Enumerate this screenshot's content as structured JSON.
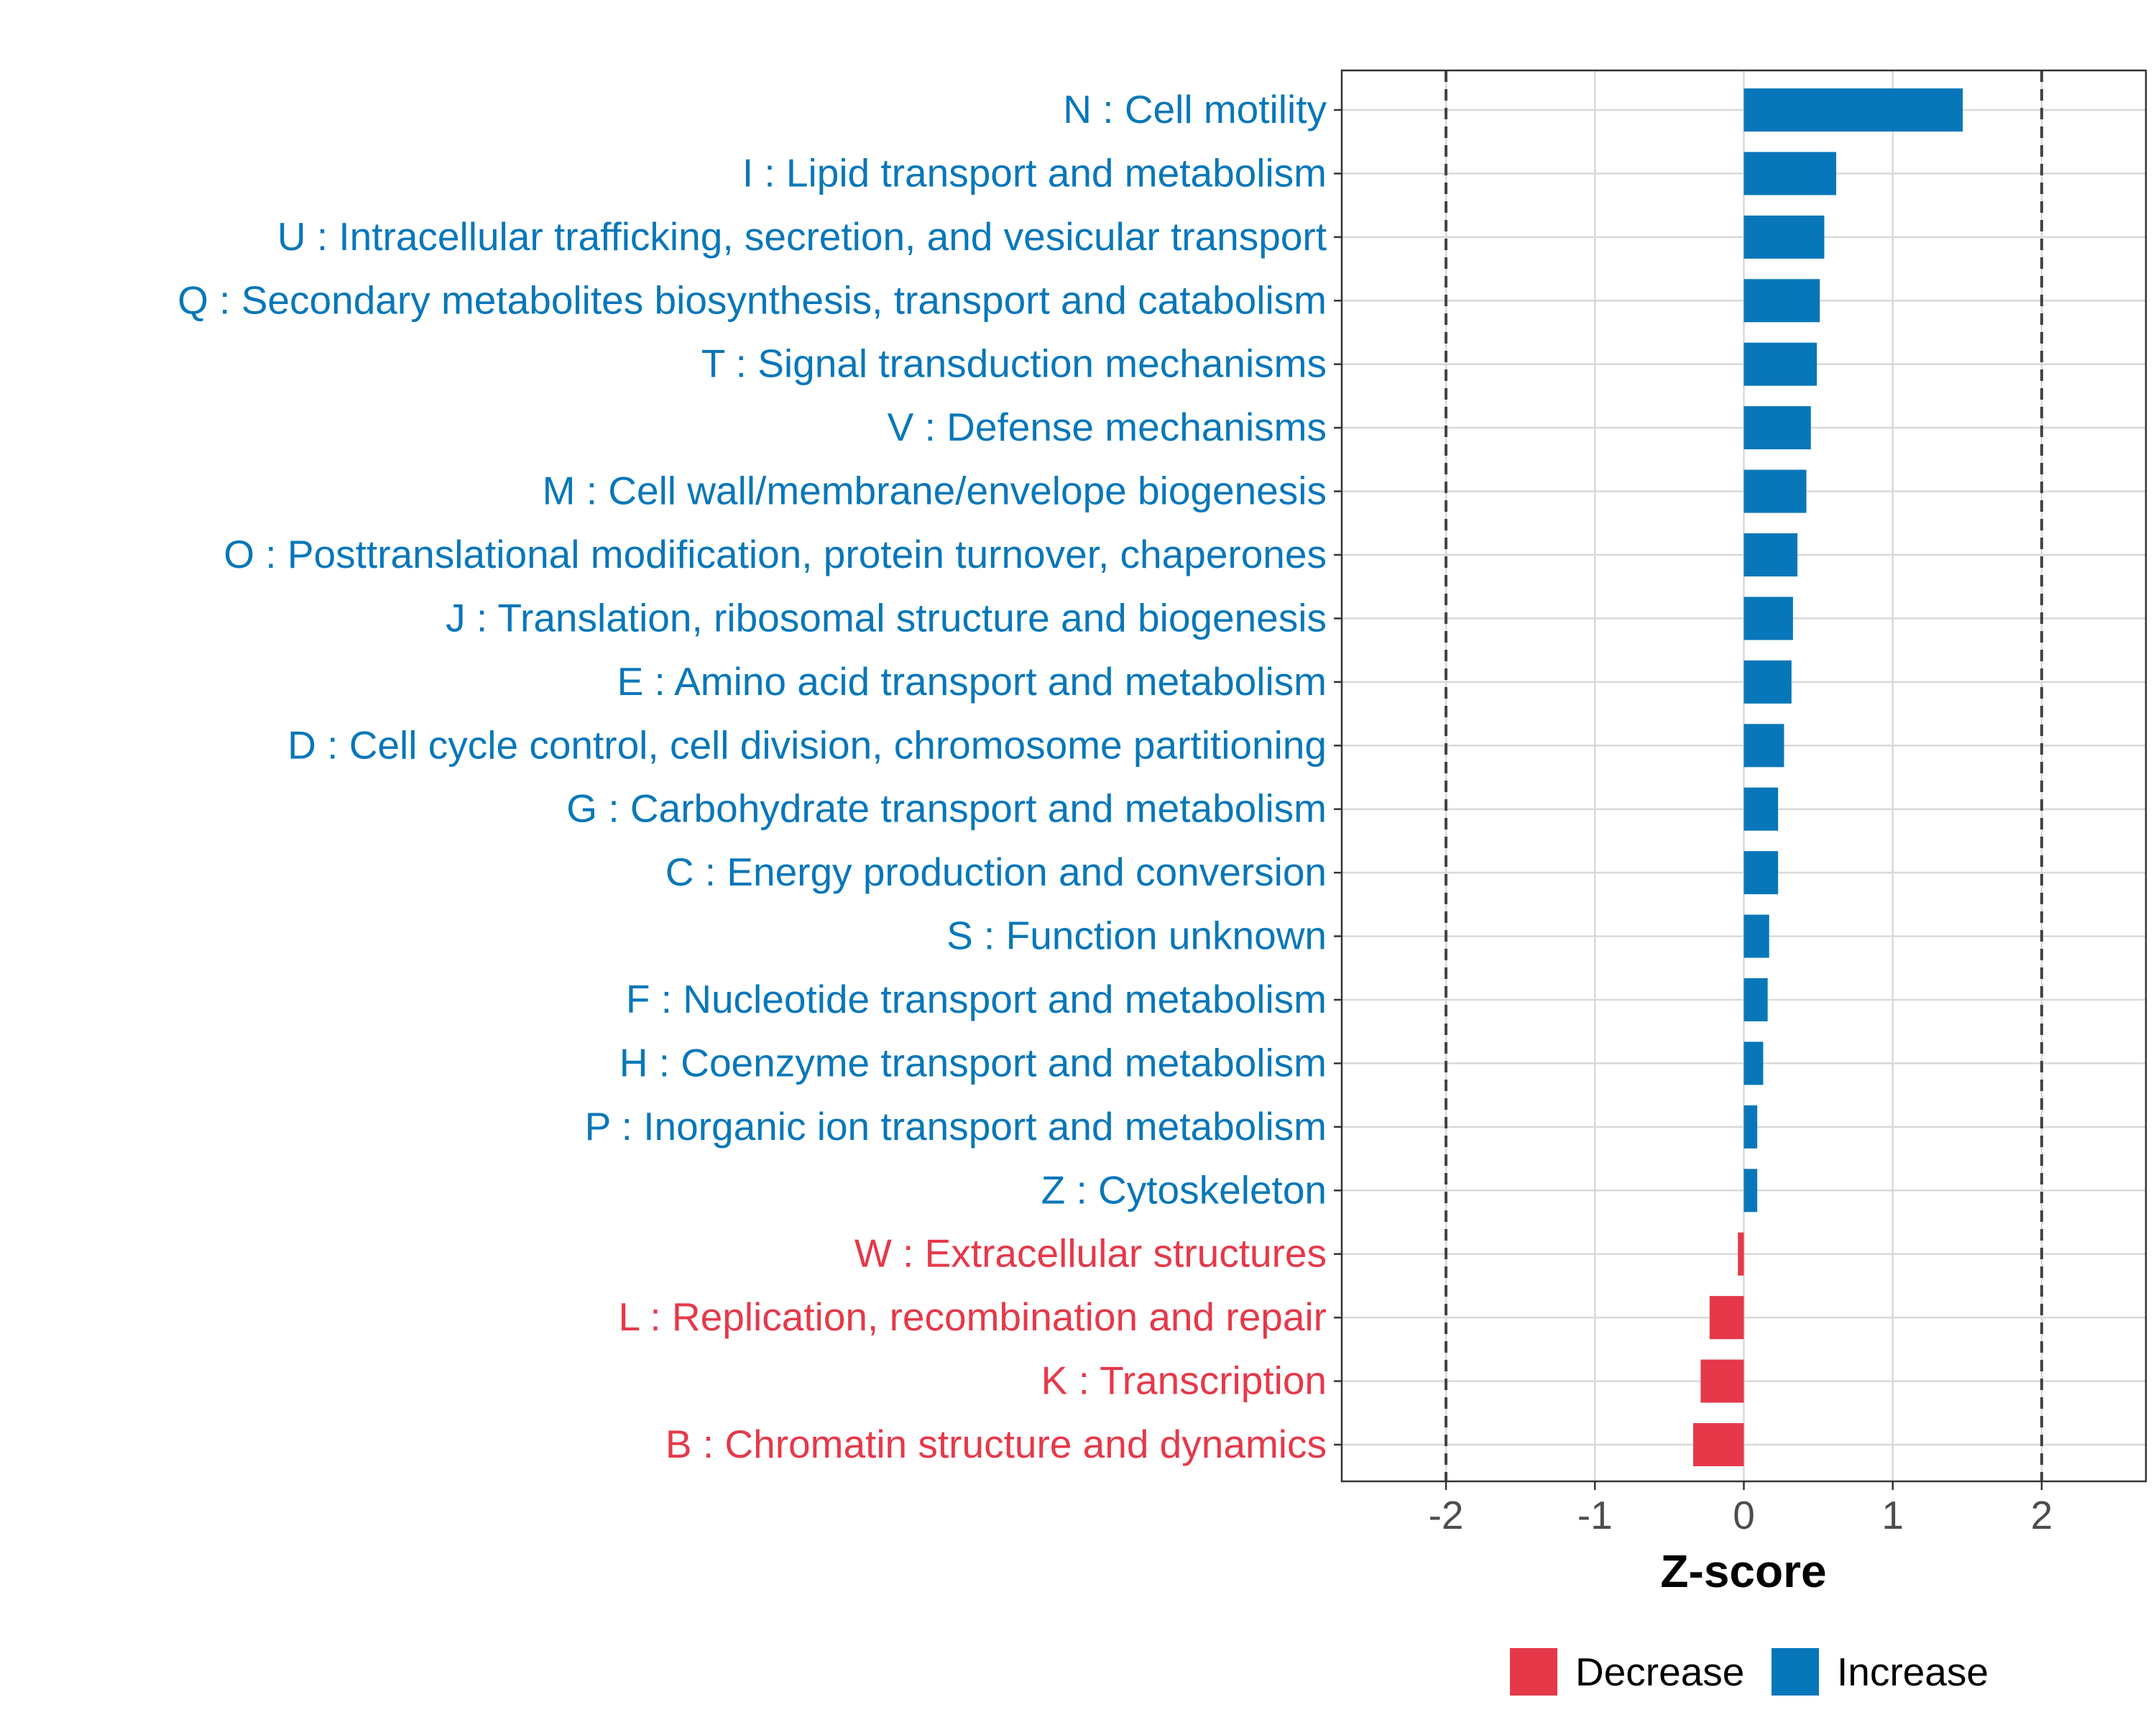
{
  "colors": {
    "increase": "#0877B9",
    "decrease": "#E5394A",
    "grid": "#D9D9D9",
    "axis_text": "#4D4D4D",
    "frame": "#333333",
    "ref_line": "#444444"
  },
  "chart_data": {
    "type": "bar",
    "orientation": "horizontal",
    "xlabel": "Z-score",
    "xlim": [
      -2.7,
      2.7
    ],
    "xticks": [
      -2,
      -1,
      0,
      1,
      2
    ],
    "xtick_labels": [
      "-2",
      "-1",
      "0",
      "1",
      "2"
    ],
    "reference_lines": [
      -2,
      2
    ],
    "grid": true,
    "legend_position": "bottom",
    "legend": [
      {
        "name": "Decrease",
        "color_key": "decrease"
      },
      {
        "name": "Increase",
        "color_key": "increase"
      }
    ],
    "categories": [
      "N : Cell motility",
      "I : Lipid transport and metabolism",
      "U : Intracellular trafficking, secretion, and vesicular transport",
      "Q : Secondary metabolites biosynthesis, transport and catabolism",
      "T : Signal transduction mechanisms",
      "V : Defense mechanisms",
      "M : Cell wall/membrane/envelope biogenesis",
      "O : Posttranslational modification, protein turnover, chaperones",
      "J : Translation, ribosomal structure and biogenesis",
      "E : Amino acid transport and metabolism",
      "D : Cell cycle control, cell division, chromosome partitioning",
      "G : Carbohydrate transport and metabolism",
      "C : Energy production and conversion",
      "S : Function unknown",
      "F : Nucleotide transport and metabolism",
      "H : Coenzyme transport and metabolism",
      "P : Inorganic ion transport and metabolism",
      "Z : Cytoskeleton",
      "W : Extracellular structures",
      "L : Replication, recombination and repair",
      "K : Transcription",
      "B : Chromatin structure and dynamics"
    ],
    "values": [
      1.47,
      0.62,
      0.54,
      0.51,
      0.49,
      0.45,
      0.42,
      0.36,
      0.33,
      0.32,
      0.27,
      0.23,
      0.23,
      0.17,
      0.16,
      0.13,
      0.09,
      0.09,
      -0.04,
      -0.23,
      -0.29,
      -0.34
    ],
    "direction": [
      "Increase",
      "Increase",
      "Increase",
      "Increase",
      "Increase",
      "Increase",
      "Increase",
      "Increase",
      "Increase",
      "Increase",
      "Increase",
      "Increase",
      "Increase",
      "Increase",
      "Increase",
      "Increase",
      "Increase",
      "Increase",
      "Decrease",
      "Decrease",
      "Decrease",
      "Decrease"
    ]
  }
}
